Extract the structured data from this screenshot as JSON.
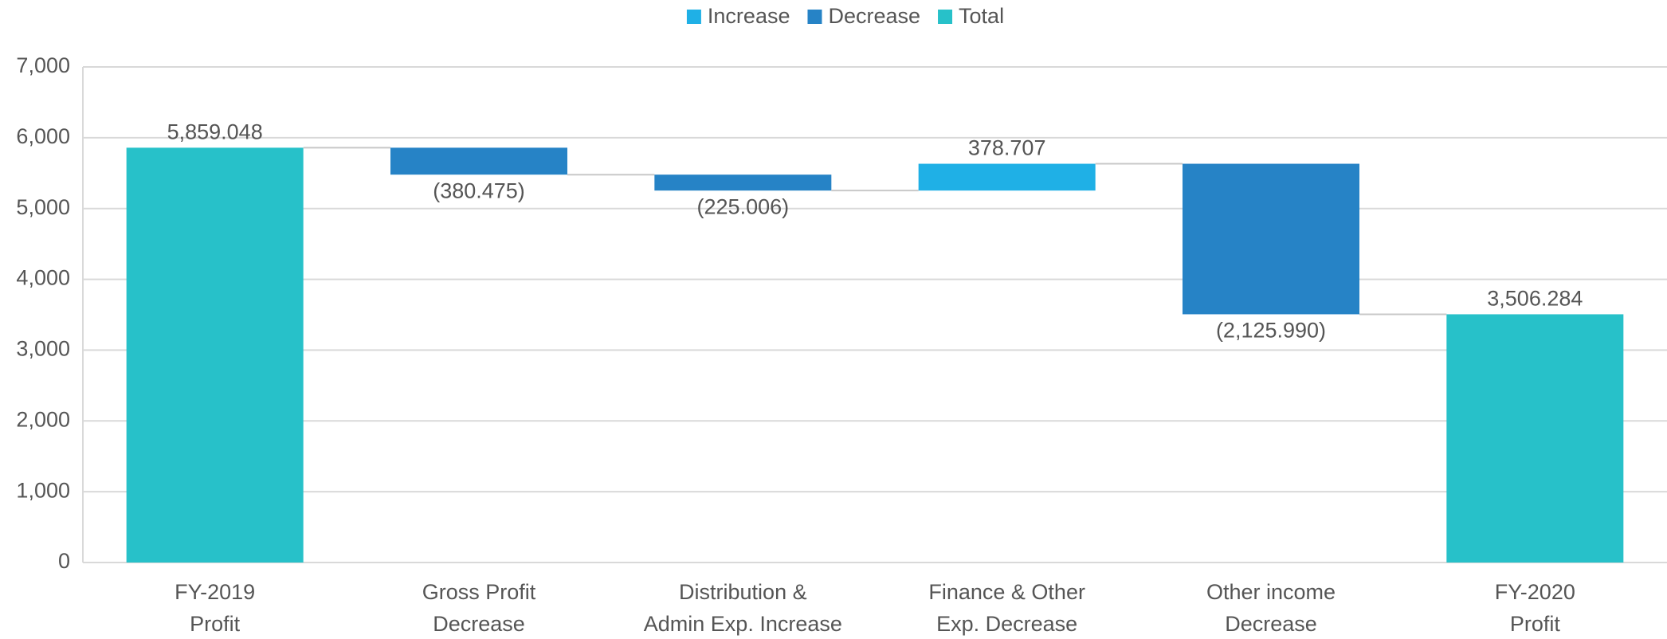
{
  "chart_data": {
    "type": "waterfall",
    "legend": [
      {
        "name": "Increase",
        "color": "#1fb0e6"
      },
      {
        "name": "Decrease",
        "color": "#2683c6"
      },
      {
        "name": "Total",
        "color": "#27c1c9"
      }
    ],
    "categories": [
      [
        "FY-2019",
        "Profit"
      ],
      [
        "Gross Profit",
        "Decrease"
      ],
      [
        "Distribution &",
        "Admin Exp. Increase"
      ],
      [
        "Finance & Other",
        "Exp. Decrease"
      ],
      [
        "Other income",
        "Decrease"
      ],
      [
        "FY-2020",
        "Profit"
      ]
    ],
    "values": [
      5859.048,
      -380.475,
      -225.006,
      378.707,
      -2125.99,
      3506.284
    ],
    "value_labels": [
      "5,859.048",
      "(380.475)",
      "(225.006)",
      "378.707",
      "(2,125.990)",
      "3,506.284"
    ],
    "totals": [
      true,
      false,
      false,
      false,
      false,
      true
    ],
    "ylim": [
      0,
      7000
    ],
    "yticks": [
      0,
      {
        "value": 1000,
        "label": "1,000"
      },
      {
        "value": 2000,
        "label": "2,000"
      },
      {
        "value": 3000,
        "label": "3,000"
      },
      {
        "value": 4000,
        "label": "4,000"
      },
      {
        "value": 5000,
        "label": "5,000"
      },
      {
        "value": 6000,
        "label": "6,000"
      },
      {
        "value": 7000,
        "label": "7,000"
      }
    ],
    "grid": true
  }
}
